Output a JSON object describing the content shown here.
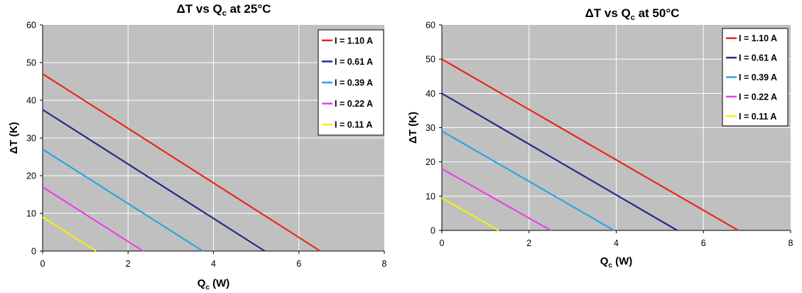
{
  "chart_data": [
    {
      "type": "line",
      "title": {
        "main": "ΔT vs Q",
        "sub": "c",
        "rest": " at 25°C"
      },
      "xlabel": {
        "main": "Q",
        "sub": "c",
        "rest": " (W)"
      },
      "ylabel": "ΔT (K)",
      "xlim": [
        0,
        8
      ],
      "ylim": [
        0,
        60
      ],
      "xticks": [
        "0",
        "2",
        "4",
        "6",
        "8"
      ],
      "yticks": [
        "0",
        "10",
        "20",
        "30",
        "40",
        "50",
        "60"
      ],
      "grid": true,
      "legend_position": "top-right",
      "series": [
        {
          "name": "I = 1.10 A",
          "color": "#e8291c",
          "x": [
            0,
            6.5
          ],
          "y": [
            47,
            0
          ]
        },
        {
          "name": "I = 0.61 A",
          "color": "#1f2d8a",
          "x": [
            0,
            5.2
          ],
          "y": [
            37.5,
            0
          ]
        },
        {
          "name": "I = 0.39 A",
          "color": "#2aa7e0",
          "x": [
            0,
            3.75
          ],
          "y": [
            27,
            0
          ]
        },
        {
          "name": "I = 0.22 A",
          "color": "#ef3ee6",
          "x": [
            0,
            2.35
          ],
          "y": [
            17,
            0
          ]
        },
        {
          "name": "I = 0.11 A",
          "color": "#f2ee1c",
          "x": [
            0,
            1.25
          ],
          "y": [
            9,
            0
          ]
        }
      ]
    },
    {
      "type": "line",
      "title": {
        "main": "ΔT vs Q",
        "sub": "c",
        "rest": " at 50°C"
      },
      "xlabel": {
        "main": "Q",
        "sub": "c",
        "rest": " (W)"
      },
      "ylabel": "ΔT (K)",
      "xlim": [
        0,
        8
      ],
      "ylim": [
        0,
        60
      ],
      "xticks": [
        "0",
        "2",
        "4",
        "6",
        "8"
      ],
      "yticks": [
        "0",
        "10",
        "20",
        "30",
        "40",
        "50",
        "60"
      ],
      "grid": true,
      "legend_position": "top-right",
      "series": [
        {
          "name": "I = 1.10 A",
          "color": "#e8291c",
          "x": [
            0,
            6.8
          ],
          "y": [
            50,
            0
          ]
        },
        {
          "name": "I = 0.61 A",
          "color": "#1f2d8a",
          "x": [
            0,
            5.4
          ],
          "y": [
            40,
            0
          ]
        },
        {
          "name": "I = 0.39 A",
          "color": "#2aa7e0",
          "x": [
            0,
            3.95
          ],
          "y": [
            29,
            0
          ]
        },
        {
          "name": "I = 0.22 A",
          "color": "#ef3ee6",
          "x": [
            0,
            2.5
          ],
          "y": [
            18,
            0
          ]
        },
        {
          "name": "I = 0.11 A",
          "color": "#f2ee1c",
          "x": [
            0,
            1.3
          ],
          "y": [
            9.5,
            0
          ]
        }
      ]
    }
  ],
  "colors": {
    "plot_background": "#c0c0c0",
    "gridline": "#ffffff",
    "legend_background": "#ffffff"
  }
}
